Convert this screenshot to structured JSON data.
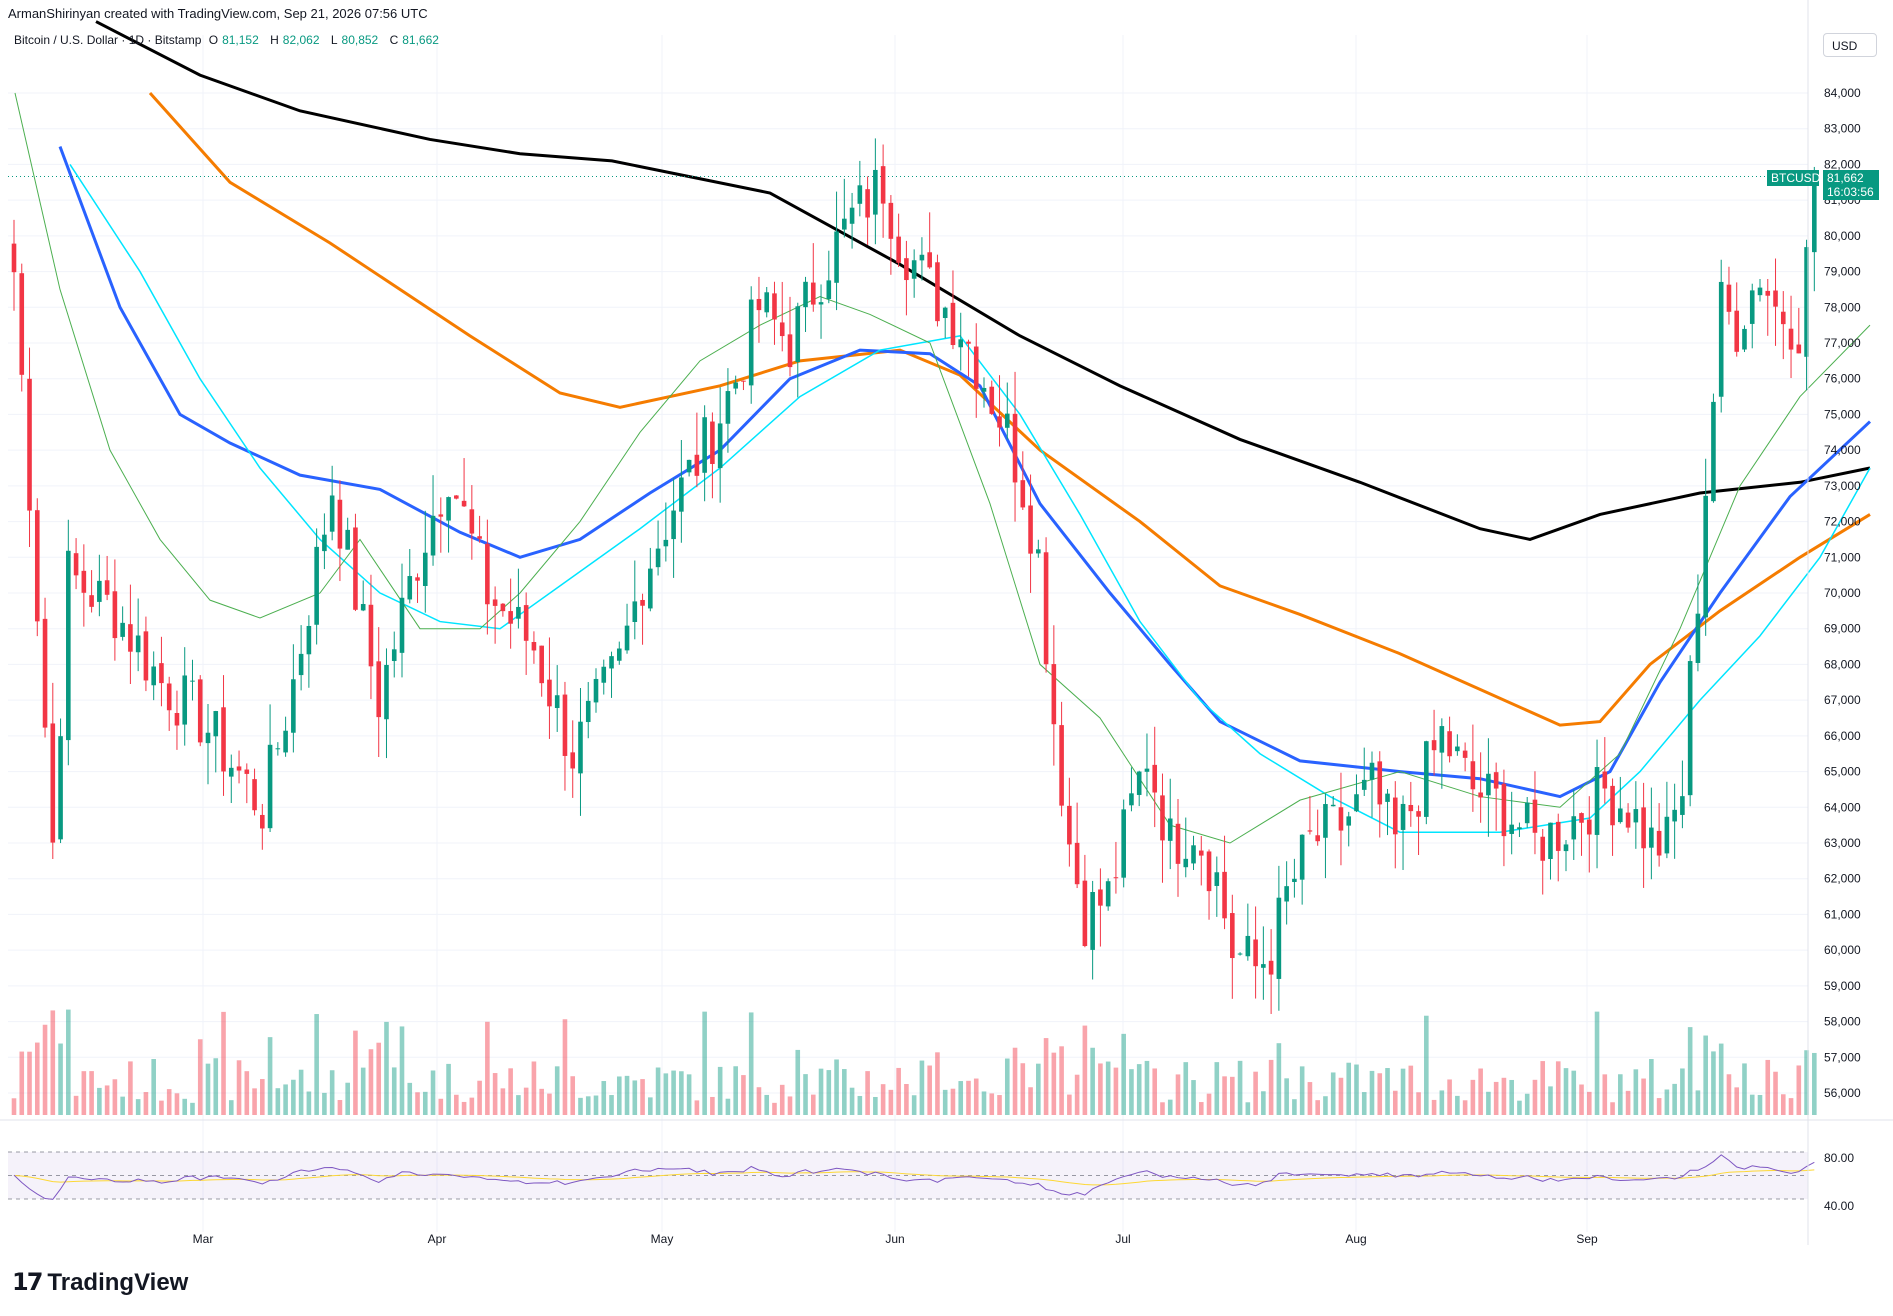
{
  "header": {
    "attribution": "ArmanShirinyan created with TradingView.com, Sep 21, 2026 07:56 UTC",
    "symbol": "Bitcoin / U.S. Dollar · 1D · Bitstamp",
    "open_label": "O",
    "open": "81,152",
    "high_label": "H",
    "high": "82,062",
    "low_label": "L",
    "low": "80,852",
    "close_label": "C",
    "close": "81,662"
  },
  "currency_button": "USD",
  "price_tag": {
    "ticker": "BTCUSD",
    "price": "81,662",
    "countdown": "16:03:56"
  },
  "brand": "TradingView",
  "colors": {
    "up": "#089981",
    "down": "#f23645",
    "ma20": "#4caf50",
    "ma50": "#2962ff",
    "ma100": "#f57c00",
    "ma200": "#000000",
    "ema": "#00e5ff",
    "rsi": "#7e57c2",
    "rsi_ma": "#fdd835"
  },
  "chart_data": {
    "type": "candlestick",
    "title": "Bitcoin / U.S. Dollar · 1D · Bitstamp",
    "y_ticks": [
      "84,000",
      "83,000",
      "82,000",
      "81,000",
      "80,000",
      "79,000",
      "78,000",
      "77,000",
      "76,000",
      "75,000",
      "74,000",
      "73,000",
      "72,000",
      "71,000",
      "70,000",
      "69,000",
      "68,000",
      "67,000",
      "66,000",
      "65,000",
      "64,000",
      "63,000",
      "62,000",
      "61,000",
      "60,000",
      "59,000",
      "58,000",
      "57,000",
      "56,000"
    ],
    "ylim": [
      55500,
      84800
    ],
    "x_ticks": [
      "Mar",
      "Apr",
      "May",
      "Jun",
      "Jul",
      "Aug",
      "Sep"
    ],
    "rsi_ticks": [
      "80.00",
      "40.00"
    ],
    "close_keypoints": [
      {
        "date": "2026-02-01",
        "close": 79000
      },
      {
        "date": "2026-02-03",
        "close": 73000
      },
      {
        "date": "2026-02-06",
        "close": 63000
      },
      {
        "date": "2026-02-08",
        "close": 70500
      },
      {
        "date": "2026-02-14",
        "close": 69500
      },
      {
        "date": "2026-02-20",
        "close": 67500
      },
      {
        "date": "2026-02-25",
        "close": 66500
      },
      {
        "date": "2026-03-05",
        "close": 64000
      },
      {
        "date": "2026-03-09",
        "close": 67500
      },
      {
        "date": "2026-03-14",
        "close": 73000
      },
      {
        "date": "2026-03-20",
        "close": 67000
      },
      {
        "date": "2026-03-25",
        "close": 71000
      },
      {
        "date": "2026-03-29",
        "close": 73500
      },
      {
        "date": "2026-04-03",
        "close": 70000
      },
      {
        "date": "2026-04-09",
        "close": 68500
      },
      {
        "date": "2026-04-14",
        "close": 65500
      },
      {
        "date": "2026-04-20",
        "close": 68000
      },
      {
        "date": "2026-04-23",
        "close": 70500
      },
      {
        "date": "2026-04-27",
        "close": 72500
      },
      {
        "date": "2026-05-02",
        "close": 74500
      },
      {
        "date": "2026-05-05",
        "close": 76000
      },
      {
        "date": "2026-05-08",
        "close": 78000
      },
      {
        "date": "2026-05-12",
        "close": 77000
      },
      {
        "date": "2026-05-16",
        "close": 79000
      },
      {
        "date": "2026-05-20",
        "close": 80500
      },
      {
        "date": "2026-05-24",
        "close": 81500
      },
      {
        "date": "2026-05-26",
        "close": 80000
      },
      {
        "date": "2026-05-30",
        "close": 78500
      },
      {
        "date": "2026-06-03",
        "close": 77500
      },
      {
        "date": "2026-06-06",
        "close": 76000
      },
      {
        "date": "2026-06-09",
        "close": 74500
      },
      {
        "date": "2026-06-11",
        "close": 73000
      },
      {
        "date": "2026-06-13",
        "close": 71000
      },
      {
        "date": "2026-06-15",
        "close": 66500
      },
      {
        "date": "2026-06-17",
        "close": 63000
      },
      {
        "date": "2026-06-19",
        "close": 61000
      },
      {
        "date": "2026-06-22",
        "close": 61500
      },
      {
        "date": "2026-06-25",
        "close": 64000
      },
      {
        "date": "2026-06-27",
        "close": 65500
      },
      {
        "date": "2026-06-30",
        "close": 63000
      },
      {
        "date": "2026-07-03",
        "close": 63500
      },
      {
        "date": "2026-07-06",
        "close": 62000
      },
      {
        "date": "2026-07-08",
        "close": 60000
      },
      {
        "date": "2026-07-11",
        "close": 59500
      },
      {
        "date": "2026-07-13",
        "close": 60000
      },
      {
        "date": "2026-07-15",
        "close": 61500
      },
      {
        "date": "2026-07-18",
        "close": 63000
      },
      {
        "date": "2026-07-22",
        "close": 63500
      },
      {
        "date": "2026-07-26",
        "close": 64500
      },
      {
        "date": "2026-07-29",
        "close": 63000
      },
      {
        "date": "2026-08-01",
        "close": 64500
      },
      {
        "date": "2026-08-04",
        "close": 66000
      },
      {
        "date": "2026-08-08",
        "close": 64500
      },
      {
        "date": "2026-08-12",
        "close": 64000
      },
      {
        "date": "2026-08-16",
        "close": 63000
      },
      {
        "date": "2026-08-20",
        "close": 63500
      },
      {
        "date": "2026-08-25",
        "close": 64500
      },
      {
        "date": "2026-08-28",
        "close": 64000
      },
      {
        "date": "2026-08-31",
        "close": 63000
      },
      {
        "date": "2026-09-02",
        "close": 63000
      },
      {
        "date": "2026-09-04",
        "close": 64500
      },
      {
        "date": "2026-09-05",
        "close": 67500
      },
      {
        "date": "2026-09-06",
        "close": 70000
      },
      {
        "date": "2026-09-07",
        "close": 73000
      },
      {
        "date": "2026-09-09",
        "close": 78000
      },
      {
        "date": "2026-09-11",
        "close": 77500
      },
      {
        "date": "2026-09-14",
        "close": 79000
      },
      {
        "date": "2026-09-16",
        "close": 78000
      },
      {
        "date": "2026-09-19",
        "close": 77500
      },
      {
        "date": "2026-09-21",
        "close": 81000
      }
    ],
    "ma_series": [
      {
        "period": "MA 200 (black)",
        "values": [
          [
            96,
            86000
          ],
          [
            200,
            84500
          ],
          [
            300,
            83500
          ],
          [
            430,
            82700
          ],
          [
            520,
            82300
          ],
          [
            612,
            82100
          ],
          [
            770,
            81200
          ],
          [
            900,
            79200
          ],
          [
            1020,
            77200
          ],
          [
            1120,
            75800
          ],
          [
            1240,
            74300
          ],
          [
            1360,
            73100
          ],
          [
            1480,
            71800
          ],
          [
            1530,
            71500
          ],
          [
            1600,
            72200
          ],
          [
            1700,
            72800
          ],
          [
            1800,
            73100
          ],
          [
            1870,
            73500
          ]
        ]
      },
      {
        "period": "MA 100 (orange)",
        "values": [
          [
            150,
            84000
          ],
          [
            230,
            81500
          ],
          [
            330,
            79800
          ],
          [
            470,
            77200
          ],
          [
            560,
            75600
          ],
          [
            620,
            75200
          ],
          [
            720,
            75800
          ],
          [
            800,
            76500
          ],
          [
            900,
            76800
          ],
          [
            960,
            76100
          ],
          [
            1040,
            74000
          ],
          [
            1140,
            72000
          ],
          [
            1220,
            70200
          ],
          [
            1300,
            69400
          ],
          [
            1400,
            68300
          ],
          [
            1480,
            67300
          ],
          [
            1560,
            66300
          ],
          [
            1600,
            66400
          ],
          [
            1650,
            68000
          ],
          [
            1720,
            69500
          ],
          [
            1800,
            71000
          ],
          [
            1870,
            72200
          ]
        ]
      },
      {
        "period": "MA 50 (blue)",
        "values": [
          [
            60,
            82500
          ],
          [
            120,
            78000
          ],
          [
            180,
            75000
          ],
          [
            230,
            74200
          ],
          [
            300,
            73300
          ],
          [
            380,
            72900
          ],
          [
            460,
            71700
          ],
          [
            520,
            71000
          ],
          [
            580,
            71500
          ],
          [
            650,
            72800
          ],
          [
            720,
            74000
          ],
          [
            790,
            76000
          ],
          [
            860,
            76800
          ],
          [
            930,
            76700
          ],
          [
            980,
            75800
          ],
          [
            1040,
            72500
          ],
          [
            1110,
            70000
          ],
          [
            1170,
            68000
          ],
          [
            1220,
            66400
          ],
          [
            1300,
            65300
          ],
          [
            1400,
            65000
          ],
          [
            1480,
            64800
          ],
          [
            1560,
            64300
          ],
          [
            1610,
            65000
          ],
          [
            1660,
            67500
          ],
          [
            1720,
            70000
          ],
          [
            1790,
            72700
          ],
          [
            1870,
            74800
          ]
        ]
      },
      {
        "period": "EMA (cyan)",
        "values": [
          [
            70,
            82000
          ],
          [
            140,
            79000
          ],
          [
            200,
            76000
          ],
          [
            260,
            73500
          ],
          [
            320,
            71500
          ],
          [
            380,
            70000
          ],
          [
            440,
            69200
          ],
          [
            500,
            69000
          ],
          [
            560,
            70200
          ],
          [
            640,
            71800
          ],
          [
            720,
            73500
          ],
          [
            800,
            75500
          ],
          [
            880,
            76800
          ],
          [
            960,
            77200
          ],
          [
            1020,
            75000
          ],
          [
            1080,
            72200
          ],
          [
            1140,
            69200
          ],
          [
            1200,
            67000
          ],
          [
            1260,
            65500
          ],
          [
            1330,
            64300
          ],
          [
            1400,
            63300
          ],
          [
            1500,
            63300
          ],
          [
            1590,
            63700
          ],
          [
            1640,
            65000
          ],
          [
            1700,
            67000
          ],
          [
            1760,
            68800
          ],
          [
            1820,
            71000
          ],
          [
            1870,
            73500
          ]
        ]
      },
      {
        "period": "MA 20 (green)",
        "values": [
          [
            15,
            84000
          ],
          [
            60,
            78500
          ],
          [
            110,
            74000
          ],
          [
            160,
            71500
          ],
          [
            210,
            69800
          ],
          [
            260,
            69300
          ],
          [
            320,
            70000
          ],
          [
            360,
            71500
          ],
          [
            420,
            69000
          ],
          [
            480,
            69000
          ],
          [
            520,
            70000
          ],
          [
            580,
            72000
          ],
          [
            640,
            74500
          ],
          [
            700,
            76500
          ],
          [
            760,
            77500
          ],
          [
            820,
            78300
          ],
          [
            870,
            77800
          ],
          [
            930,
            77000
          ],
          [
            990,
            72500
          ],
          [
            1040,
            68000
          ],
          [
            1100,
            66500
          ],
          [
            1170,
            63500
          ],
          [
            1230,
            63000
          ],
          [
            1300,
            64200
          ],
          [
            1400,
            65000
          ],
          [
            1480,
            64300
          ],
          [
            1560,
            64000
          ],
          [
            1620,
            65500
          ],
          [
            1680,
            69000
          ],
          [
            1740,
            73000
          ],
          [
            1800,
            75500
          ],
          [
            1870,
            77500
          ]
        ]
      }
    ],
    "volume_note": "volume histogram, green up / red down",
    "rsi": {
      "upper": 70,
      "lower": 30,
      "last": "~60"
    }
  }
}
